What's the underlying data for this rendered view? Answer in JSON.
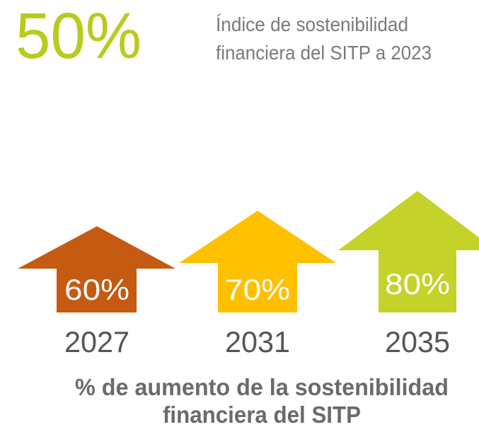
{
  "headline": {
    "value": "50%",
    "label": [
      "Índice de sostenibilidad",
      "financiera del SITP a 2023"
    ]
  },
  "targets": [
    {
      "value": "60%",
      "year": "2027"
    },
    {
      "value": "70%",
      "year": "2031"
    },
    {
      "value": "80%",
      "year": "2035"
    }
  ],
  "caption": [
    "% de aumento de la sostenibilidad",
    "financiera del SITP"
  ]
}
